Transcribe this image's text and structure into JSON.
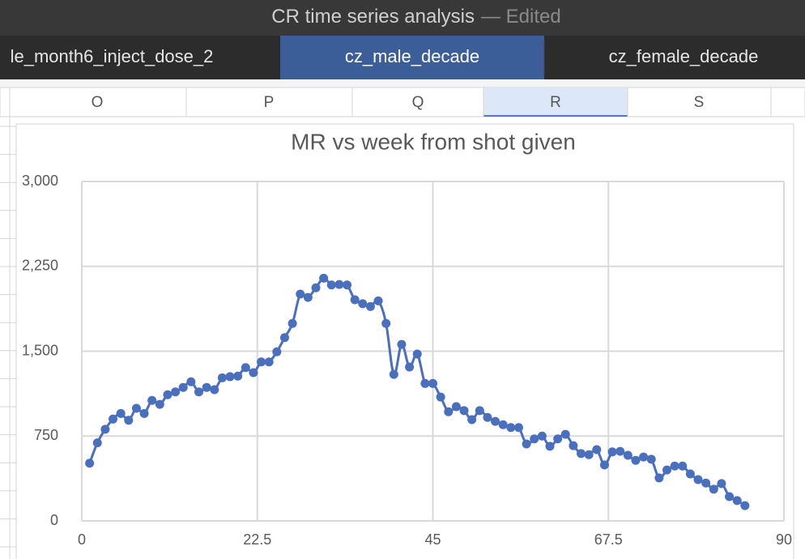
{
  "window": {
    "title": "CR time series analysis",
    "status": "— Edited"
  },
  "tabs": [
    "le_month6_inject_dose_2",
    "cz_male_decade",
    "cz_female_decade"
  ],
  "columns": [
    "O",
    "P",
    "Q",
    "R",
    "S"
  ],
  "chart_data": {
    "type": "line",
    "title": "MR vs week from shot given",
    "x": [
      1,
      2,
      3,
      4,
      5,
      6,
      7,
      8,
      9,
      10,
      11,
      12,
      13,
      14,
      15,
      16,
      17,
      18,
      19,
      20,
      21,
      22,
      23,
      24,
      25,
      26,
      27,
      28,
      29,
      30,
      31,
      32,
      33,
      34,
      35,
      36,
      37,
      38,
      39,
      40,
      41,
      42,
      43,
      44,
      45,
      46,
      47,
      48,
      49,
      50,
      51,
      52,
      53,
      54,
      55,
      56,
      57,
      58,
      59,
      60,
      61,
      62,
      63,
      64,
      65,
      66,
      67,
      68,
      69,
      70,
      71,
      72,
      73,
      74,
      75,
      76,
      77,
      78,
      79,
      80,
      81,
      82,
      83,
      84,
      85
    ],
    "series": [
      {
        "name": "MR",
        "color": "#4a6fbd",
        "values": [
          510,
          690,
          810,
          900,
          950,
          890,
          995,
          950,
          1065,
          1030,
          1115,
          1140,
          1180,
          1230,
          1140,
          1180,
          1160,
          1265,
          1275,
          1280,
          1355,
          1310,
          1405,
          1405,
          1495,
          1620,
          1745,
          2005,
          1975,
          2060,
          2145,
          2085,
          2090,
          2085,
          1955,
          1920,
          1895,
          1945,
          1745,
          1295,
          1560,
          1360,
          1475,
          1215,
          1215,
          1095,
          965,
          1010,
          975,
          895,
          975,
          915,
          880,
          850,
          825,
          825,
          680,
          725,
          750,
          660,
          725,
          765,
          665,
          595,
          585,
          630,
          495,
          610,
          615,
          580,
          535,
          565,
          545,
          380,
          450,
          485,
          485,
          415,
          365,
          335,
          280,
          330,
          215,
          180,
          135
        ]
      }
    ],
    "xlim": [
      0,
      90
    ],
    "xticks": [
      0,
      22.5,
      45,
      67.5,
      90
    ],
    "ylim": [
      0,
      3000
    ],
    "yticks": [
      0,
      {
        "value": 750,
        "label": "750"
      },
      {
        "value": 1500,
        "label": "1,500"
      },
      {
        "value": 2250,
        "label": "2,250"
      },
      {
        "value": 3000,
        "label": "3,000"
      }
    ],
    "grid": true
  }
}
